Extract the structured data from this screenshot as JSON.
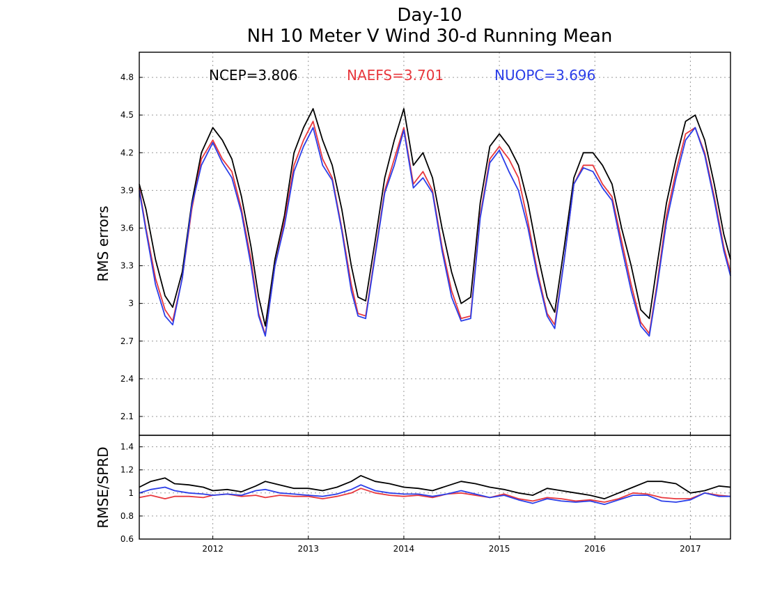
{
  "chart_data": [
    {
      "type": "line",
      "title": "Day-10",
      "subtitle": "NH 10 Meter V Wind 30-d Running Mean",
      "xlabel": "",
      "ylabel": "RMS errors",
      "xlim": [
        2011.23,
        2017.42
      ],
      "ylim": [
        1.95,
        5.0
      ],
      "yticks": [
        2.1,
        2.4,
        2.7,
        3,
        3.3,
        3.6,
        3.9,
        4.2,
        4.5,
        4.8
      ],
      "ytick_labels": [
        "2.1",
        "2.4",
        "2.7",
        "3",
        "3.3",
        "3.6",
        "3.9",
        "4.2",
        "4.5",
        "4.8"
      ],
      "xticks": [
        2012,
        2013,
        2014,
        2015,
        2016,
        2017
      ],
      "xtick_labels": [
        "2012",
        "2013",
        "2014",
        "2015",
        "2016",
        "2017"
      ],
      "grid": true,
      "stats": [
        {
          "label": "NCEP=3.806",
          "color": "#000000"
        },
        {
          "label": "NAEFS=3.701",
          "color": "#e8383d"
        },
        {
          "label": "NUOPC=3.696",
          "color": "#2b3ee8"
        }
      ],
      "series": [
        {
          "name": "NCEP",
          "color": "#000000",
          "x": [
            2011.23,
            2011.3,
            2011.4,
            2011.5,
            2011.58,
            2011.68,
            2011.78,
            2011.88,
            2012.0,
            2012.1,
            2012.2,
            2012.3,
            2012.4,
            2012.48,
            2012.55,
            2012.65,
            2012.75,
            2012.85,
            2012.95,
            2013.05,
            2013.15,
            2013.25,
            2013.35,
            2013.45,
            2013.52,
            2013.6,
            2013.7,
            2013.8,
            2013.9,
            2014.0,
            2014.1,
            2014.2,
            2014.3,
            2014.4,
            2014.5,
            2014.6,
            2014.7,
            2014.8,
            2014.9,
            2015.0,
            2015.1,
            2015.2,
            2015.3,
            2015.4,
            2015.5,
            2015.58,
            2015.68,
            2015.78,
            2015.88,
            2015.98,
            2016.08,
            2016.18,
            2016.28,
            2016.38,
            2016.48,
            2016.57,
            2016.65,
            2016.75,
            2016.85,
            2016.95,
            2017.05,
            2017.15,
            2017.25,
            2017.35,
            2017.42
          ],
          "y": [
            3.95,
            3.75,
            3.35,
            3.06,
            2.97,
            3.25,
            3.8,
            4.2,
            4.4,
            4.3,
            4.15,
            3.85,
            3.45,
            3.05,
            2.82,
            3.35,
            3.7,
            4.2,
            4.4,
            4.55,
            4.3,
            4.1,
            3.75,
            3.3,
            3.05,
            3.02,
            3.5,
            4.0,
            4.3,
            4.55,
            4.1,
            4.2,
            4.0,
            3.6,
            3.25,
            3.0,
            3.05,
            3.8,
            4.25,
            4.35,
            4.25,
            4.1,
            3.8,
            3.4,
            3.05,
            2.93,
            3.45,
            4.0,
            4.2,
            4.2,
            4.1,
            3.95,
            3.6,
            3.3,
            2.95,
            2.88,
            3.3,
            3.8,
            4.15,
            4.45,
            4.5,
            4.3,
            3.95,
            3.55,
            3.35
          ]
        },
        {
          "name": "NAEFS",
          "color": "#e8383d",
          "x": [
            2011.23,
            2011.3,
            2011.4,
            2011.5,
            2011.58,
            2011.68,
            2011.78,
            2011.88,
            2012.0,
            2012.1,
            2012.2,
            2012.3,
            2012.4,
            2012.48,
            2012.55,
            2012.65,
            2012.75,
            2012.85,
            2012.95,
            2013.05,
            2013.15,
            2013.25,
            2013.35,
            2013.45,
            2013.52,
            2013.6,
            2013.7,
            2013.8,
            2013.9,
            2014.0,
            2014.1,
            2014.2,
            2014.3,
            2014.4,
            2014.5,
            2014.6,
            2014.7,
            2014.8,
            2014.9,
            2015.0,
            2015.1,
            2015.2,
            2015.3,
            2015.4,
            2015.5,
            2015.58,
            2015.68,
            2015.78,
            2015.88,
            2015.98,
            2016.08,
            2016.18,
            2016.28,
            2016.38,
            2016.48,
            2016.57,
            2016.65,
            2016.75,
            2016.85,
            2016.95,
            2017.05,
            2017.15,
            2017.25,
            2017.35,
            2017.42
          ],
          "y": [
            3.92,
            3.6,
            3.2,
            2.95,
            2.86,
            3.2,
            3.75,
            4.15,
            4.3,
            4.15,
            4.05,
            3.75,
            3.35,
            2.92,
            2.75,
            3.3,
            3.65,
            4.1,
            4.3,
            4.45,
            4.15,
            4.0,
            3.6,
            3.15,
            2.92,
            2.9,
            3.4,
            3.9,
            4.15,
            4.4,
            3.95,
            4.05,
            3.9,
            3.45,
            3.1,
            2.88,
            2.9,
            3.7,
            4.15,
            4.25,
            4.15,
            4.0,
            3.65,
            3.25,
            2.92,
            2.83,
            3.35,
            3.95,
            4.1,
            4.1,
            3.95,
            3.85,
            3.5,
            3.15,
            2.85,
            2.76,
            3.15,
            3.7,
            4.05,
            4.35,
            4.4,
            4.2,
            3.85,
            3.45,
            3.25
          ]
        },
        {
          "name": "NUOPC",
          "color": "#2b3ee8",
          "x": [
            2011.23,
            2011.3,
            2011.4,
            2011.5,
            2011.58,
            2011.68,
            2011.78,
            2011.88,
            2012.0,
            2012.1,
            2012.2,
            2012.3,
            2012.4,
            2012.48,
            2012.55,
            2012.65,
            2012.75,
            2012.85,
            2012.95,
            2013.05,
            2013.15,
            2013.25,
            2013.35,
            2013.45,
            2013.52,
            2013.6,
            2013.7,
            2013.8,
            2013.9,
            2014.0,
            2014.1,
            2014.2,
            2014.3,
            2014.4,
            2014.5,
            2014.6,
            2014.7,
            2014.8,
            2014.9,
            2015.0,
            2015.1,
            2015.2,
            2015.3,
            2015.4,
            2015.5,
            2015.58,
            2015.68,
            2015.78,
            2015.88,
            2015.98,
            2016.08,
            2016.18,
            2016.28,
            2016.38,
            2016.48,
            2016.57,
            2016.65,
            2016.75,
            2016.85,
            2016.95,
            2017.05,
            2017.15,
            2017.25,
            2017.35,
            2017.42
          ],
          "y": [
            3.9,
            3.58,
            3.15,
            2.9,
            2.83,
            3.2,
            3.78,
            4.1,
            4.28,
            4.12,
            4.0,
            3.72,
            3.3,
            2.9,
            2.74,
            3.3,
            3.62,
            4.05,
            4.25,
            4.4,
            4.1,
            3.98,
            3.58,
            3.1,
            2.9,
            2.88,
            3.38,
            3.88,
            4.1,
            4.38,
            3.92,
            4.0,
            3.88,
            3.42,
            3.05,
            2.86,
            2.88,
            3.68,
            4.12,
            4.22,
            4.05,
            3.9,
            3.6,
            3.22,
            2.9,
            2.8,
            3.35,
            3.95,
            4.08,
            4.05,
            3.92,
            3.82,
            3.45,
            3.1,
            2.82,
            2.74,
            3.12,
            3.65,
            4.0,
            4.3,
            4.4,
            4.18,
            3.82,
            3.42,
            3.22
          ]
        }
      ]
    },
    {
      "type": "line",
      "title": "",
      "xlabel": "",
      "ylabel": "RMSE/SPRD",
      "xlim": [
        2011.23,
        2017.42
      ],
      "ylim": [
        0.6,
        1.5
      ],
      "yticks": [
        0.6,
        0.8,
        1,
        1.2,
        1.4
      ],
      "ytick_labels": [
        "0.6",
        "0.8",
        "1",
        "1.2",
        "1.4"
      ],
      "xticks": [
        2012,
        2013,
        2014,
        2015,
        2016,
        2017
      ],
      "xtick_labels": [
        "2012",
        "2013",
        "2014",
        "2015",
        "2016",
        "2017"
      ],
      "grid": true,
      "series": [
        {
          "name": "NCEP",
          "color": "#000000",
          "x": [
            2011.23,
            2011.35,
            2011.5,
            2011.6,
            2011.75,
            2011.9,
            2012.0,
            2012.15,
            2012.3,
            2012.45,
            2012.55,
            2012.7,
            2012.85,
            2013.0,
            2013.15,
            2013.3,
            2013.45,
            2013.55,
            2013.7,
            2013.85,
            2014.0,
            2014.15,
            2014.3,
            2014.45,
            2014.6,
            2014.75,
            2014.9,
            2015.05,
            2015.2,
            2015.35,
            2015.5,
            2015.65,
            2015.8,
            2015.95,
            2016.1,
            2016.25,
            2016.4,
            2016.55,
            2016.7,
            2016.85,
            2017.0,
            2017.15,
            2017.3,
            2017.42
          ],
          "y": [
            1.05,
            1.1,
            1.13,
            1.08,
            1.07,
            1.05,
            1.02,
            1.03,
            1.01,
            1.06,
            1.1,
            1.07,
            1.04,
            1.04,
            1.02,
            1.05,
            1.1,
            1.15,
            1.1,
            1.08,
            1.05,
            1.04,
            1.02,
            1.06,
            1.1,
            1.08,
            1.05,
            1.03,
            1.0,
            0.98,
            1.04,
            1.02,
            1.0,
            0.98,
            0.95,
            1.0,
            1.05,
            1.1,
            1.1,
            1.08,
            1.0,
            1.02,
            1.06,
            1.05
          ]
        },
        {
          "name": "NAEFS",
          "color": "#e8383d",
          "x": [
            2011.23,
            2011.35,
            2011.5,
            2011.6,
            2011.75,
            2011.9,
            2012.0,
            2012.15,
            2012.3,
            2012.45,
            2012.55,
            2012.7,
            2012.85,
            2013.0,
            2013.15,
            2013.3,
            2013.45,
            2013.55,
            2013.7,
            2013.85,
            2014.0,
            2014.15,
            2014.3,
            2014.45,
            2014.6,
            2014.75,
            2014.9,
            2015.05,
            2015.2,
            2015.35,
            2015.5,
            2015.65,
            2015.8,
            2015.95,
            2016.1,
            2016.25,
            2016.4,
            2016.55,
            2016.7,
            2016.85,
            2017.0,
            2017.15,
            2017.3,
            2017.42
          ],
          "y": [
            0.96,
            0.98,
            0.95,
            0.97,
            0.97,
            0.96,
            0.98,
            0.99,
            0.97,
            0.98,
            0.96,
            0.98,
            0.97,
            0.97,
            0.95,
            0.97,
            1.0,
            1.04,
            1.0,
            0.98,
            0.97,
            0.98,
            0.96,
            0.99,
            1.0,
            0.98,
            0.96,
            0.99,
            0.95,
            0.93,
            0.96,
            0.95,
            0.93,
            0.94,
            0.92,
            0.95,
            1.0,
            0.99,
            0.96,
            0.95,
            0.95,
            1.0,
            0.98,
            0.97
          ]
        },
        {
          "name": "NUOPC",
          "color": "#2b3ee8",
          "x": [
            2011.23,
            2011.35,
            2011.5,
            2011.6,
            2011.75,
            2011.9,
            2012.0,
            2012.15,
            2012.3,
            2012.45,
            2012.55,
            2012.7,
            2012.85,
            2013.0,
            2013.15,
            2013.3,
            2013.45,
            2013.55,
            2013.7,
            2013.85,
            2014.0,
            2014.15,
            2014.3,
            2014.45,
            2014.6,
            2014.75,
            2014.9,
            2015.05,
            2015.2,
            2015.35,
            2015.5,
            2015.65,
            2015.8,
            2015.95,
            2016.1,
            2016.25,
            2016.4,
            2016.55,
            2016.7,
            2016.85,
            2017.0,
            2017.15,
            2017.3,
            2017.42
          ],
          "y": [
            1.0,
            1.03,
            1.05,
            1.02,
            1.0,
            0.99,
            0.98,
            0.99,
            0.98,
            1.02,
            1.03,
            1.0,
            0.99,
            0.98,
            0.97,
            0.99,
            1.03,
            1.07,
            1.02,
            1.0,
            0.99,
            0.99,
            0.97,
            0.99,
            1.02,
            0.99,
            0.96,
            0.98,
            0.94,
            0.91,
            0.95,
            0.93,
            0.92,
            0.93,
            0.9,
            0.94,
            0.98,
            0.98,
            0.93,
            0.92,
            0.94,
            1.0,
            0.97,
            0.97
          ]
        }
      ]
    }
  ]
}
